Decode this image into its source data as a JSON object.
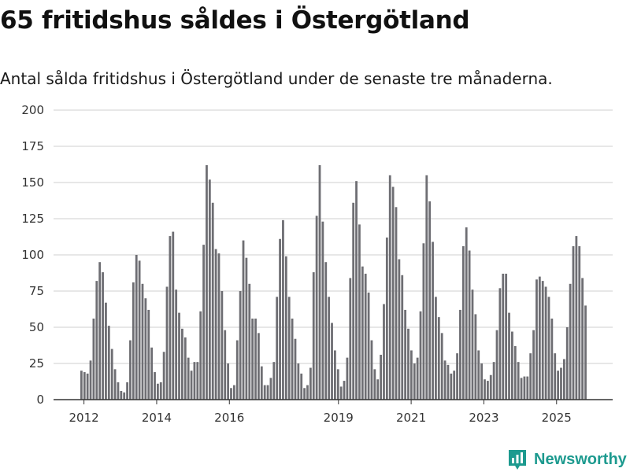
{
  "title": "65 fritidshus såldes i Östergötland",
  "subtitle": "Antal sålda fritidshus i Östergötland under de senaste tre månaderna.",
  "brand": {
    "name": "Newsworthy",
    "color": "#1d9a8f",
    "icon": "newsworthy-logo-icon"
  },
  "colors": {
    "bar": "#6e6e73",
    "highlight": "#1d9a8f",
    "grid": "#cfcfcf",
    "axis": "#333333"
  },
  "chart_data": {
    "type": "bar",
    "title": "65 fritidshus såldes i Östergötland",
    "xlabel": "",
    "ylabel": "",
    "ylim": [
      0,
      200
    ],
    "yticks": [
      0,
      25,
      50,
      75,
      100,
      125,
      150,
      175,
      200
    ],
    "x_start": 2011.9,
    "x_end": 2025.85,
    "xticks": [
      {
        "label": "2012",
        "pos": 2012
      },
      {
        "label": "2014",
        "pos": 2014
      },
      {
        "label": "2016",
        "pos": 2016
      },
      {
        "label": "2019",
        "pos": 2019
      },
      {
        "label": "2021",
        "pos": 2021
      },
      {
        "label": "2023",
        "pos": 2023
      },
      {
        "label": "2025",
        "pos": 2025
      }
    ],
    "values": [
      20,
      19,
      18,
      27,
      56,
      82,
      95,
      88,
      67,
      51,
      35,
      21,
      12,
      6,
      5,
      12,
      41,
      81,
      100,
      96,
      80,
      70,
      62,
      36,
      19,
      11,
      12,
      33,
      78,
      113,
      116,
      76,
      60,
      49,
      43,
      29,
      20,
      26,
      26,
      61,
      107,
      162,
      152,
      136,
      104,
      101,
      75,
      48,
      25,
      8,
      10,
      41,
      75,
      110,
      98,
      80,
      56,
      56,
      46,
      23,
      10,
      10,
      15,
      26,
      71,
      111,
      124,
      99,
      71,
      56,
      42,
      25,
      18,
      8,
      10,
      22,
      88,
      127,
      162,
      123,
      95,
      71,
      53,
      34,
      21,
      9,
      13,
      29,
      84,
      136,
      151,
      121,
      92,
      87,
      74,
      41,
      21,
      14,
      31,
      66,
      112,
      155,
      147,
      133,
      97,
      86,
      62,
      49,
      34,
      25,
      29,
      61,
      108,
      155,
      137,
      109,
      71,
      57,
      46,
      27,
      24,
      18,
      20,
      32,
      62,
      106,
      119,
      103,
      76,
      59,
      34,
      25,
      14,
      13,
      17,
      26,
      48,
      77,
      87,
      87,
      60,
      47,
      37,
      26,
      15,
      16,
      16,
      32,
      48,
      83,
      85,
      82,
      78,
      71,
      56,
      32,
      20,
      22,
      28,
      50,
      80,
      106,
      113,
      106,
      84,
      65
    ],
    "highlight_index": 167,
    "highlight_label": "65"
  }
}
